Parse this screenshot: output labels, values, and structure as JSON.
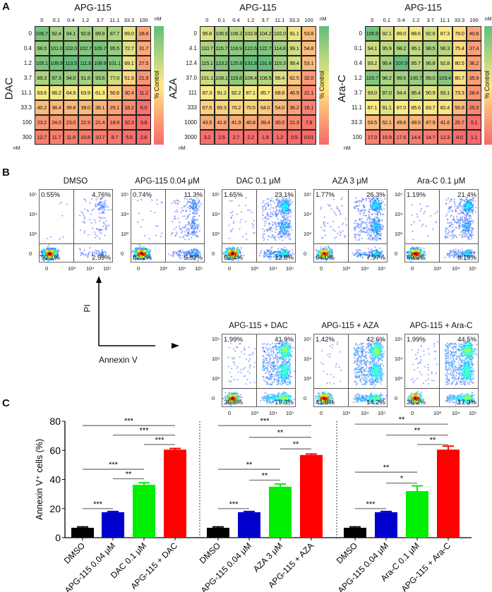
{
  "panel_labels": {
    "a": "A",
    "b": "B",
    "c": "C"
  },
  "chart_data": [
    {
      "type": "heatmap",
      "title": "APG-115",
      "column_unit": "nM",
      "row_drug": "DAC",
      "row_unit": "nM",
      "colorbar_label": "% Control",
      "columns": [
        "0",
        "0.1",
        "0.4",
        "1.2",
        "3.7",
        "11.1",
        "33.3",
        "100"
      ],
      "rows": [
        "0",
        "0.4",
        "1.2",
        "3.7",
        "11.1",
        "33.3",
        "100",
        "300"
      ],
      "values": [
        [
          106.7,
          92.4,
          94.1,
          92.8,
          89.9,
          87.7,
          69.0,
          28.8
        ],
        [
          96.5,
          101.0,
          102.0,
          102.7,
          105.7,
          95.5,
          72.7,
          31.7
        ],
        [
          105.1,
          108.9,
          113.5,
          111.6,
          108.9,
          101.1,
          69.1,
          27.5
        ],
        [
          89.3,
          97.3,
          94.0,
          91.6,
          93.6,
          77.0,
          51.9,
          21.9
        ],
        [
          63.6,
          66.2,
          64.9,
          63.9,
          61.3,
          50.6,
          30.4,
          11.2
        ],
        [
          40.2,
          38.4,
          39.8,
          39.0,
          36.1,
          29.1,
          18.2,
          6.0
        ],
        [
          23.2,
          24.0,
          23.0,
          22.9,
          21.4,
          18.9,
          10.3,
          3.8
        ],
        [
          12.7,
          11.7,
          11.8,
          10.8,
          10.7,
          8.7,
          5.5,
          2.6
        ]
      ]
    },
    {
      "type": "heatmap",
      "title": "APG-115",
      "column_unit": "nM",
      "row_drug": "AZA",
      "row_unit": "nM",
      "colorbar_label": "% Control",
      "columns": [
        "0",
        "0.1",
        "0.4",
        "1.2",
        "3.7",
        "11.1",
        "33.3",
        "100"
      ],
      "rows": [
        "0",
        "4.1",
        "12.4",
        "37.0",
        "111",
        "333",
        "1000",
        "3000"
      ],
      "values": [
        [
          95.8,
          106.6,
          106.2,
          102.8,
          104.2,
          102.0,
          91.1,
          53.8
        ],
        [
          110.7,
          115.7,
          118.9,
          122.6,
          122.7,
          114.8,
          99.1,
          54.8
        ],
        [
          115.1,
          123.2,
          125.8,
          131.8,
          131.6,
          115.3,
          99.4,
          53.1
        ],
        [
          101.1,
          108.1,
          119.8,
          108.4,
          108.5,
          96.4,
          62.5,
          32.0
        ],
        [
          87.3,
          91.2,
          92.2,
          87.1,
          85.7,
          68.8,
          46.9,
          21.1
        ],
        [
          67.5,
          69.3,
          70.2,
          70.5,
          64.0,
          54.0,
          36.2,
          16.1
        ],
        [
          43.5,
          41.8,
          41.9,
          40.8,
          39.4,
          30.0,
          21.3,
          7.8
        ],
        [
          3.2,
          2.5,
          2.7,
          2.2,
          1.9,
          1.2,
          0.5,
          0.01
        ]
      ]
    },
    {
      "type": "heatmap",
      "title": "APG-115",
      "column_unit": "nM",
      "row_drug": "Ara-C",
      "row_unit": "nM",
      "colorbar_label": "% Control",
      "columns": [
        "0",
        "0.1",
        "0.4",
        "1.2",
        "3.7",
        "11.1",
        "33.3",
        "100"
      ],
      "rows": [
        "0",
        "0.1",
        "0.4",
        "1.2",
        "3.7",
        "11.1",
        "33.3",
        "100"
      ],
      "values": [
        [
          105.9,
          92.1,
          89.0,
          88.6,
          92.6,
          87.3,
          79.0,
          40.8
        ],
        [
          94.1,
          95.9,
          98.2,
          95.1,
          98.5,
          96.3,
          75.4,
          37.4
        ],
        [
          93.2,
          99.4,
          107.9,
          95.7,
          96.8,
          92.8,
          80.5,
          36.2
        ],
        [
          103.7,
          98.2,
          99.6,
          100.7,
          99.0,
          103.4,
          80.7,
          35.9
        ],
        [
          93.0,
          97.0,
          94.4,
          95.4,
          90.9,
          93.1,
          73.3,
          28.4
        ],
        [
          87.1,
          91.1,
          87.0,
          85.6,
          83.7,
          82.4,
          56.8,
          20.3
        ],
        [
          53.5,
          52.1,
          49.6,
          49.5,
          47.9,
          41.6,
          25.7,
          5.1
        ],
        [
          17.0,
          15.9,
          17.6,
          14.4,
          14.7,
          12.3,
          4.0,
          1.1
        ]
      ]
    },
    {
      "type": "scatter",
      "description_axes": {
        "x": "Annexin V",
        "y": "PI"
      },
      "y_ticks": [
        "10⁵",
        "10⁴",
        "10³",
        "0"
      ],
      "x_ticks": [
        "0",
        "10³",
        "10⁴",
        "10⁵"
      ],
      "plots": [
        {
          "title": "DMSO",
          "UL": "0.55%",
          "UR": "4.76%",
          "LL": "92.1%",
          "LR": "2.59%"
        },
        {
          "title": "APG-115 0.04 μM",
          "UL": "0.74%",
          "UR": "11.3%",
          "LL": "82.2%",
          "LR": "5.82%"
        },
        {
          "title": "DAC 0.1 μM",
          "UL": "1.65%",
          "UR": "23.1%",
          "LL": "62.4%",
          "LR": "12.8%"
        },
        {
          "title": "AZA 3 μM",
          "UL": "1.77%",
          "UR": "26.3%",
          "LL": "64.0%",
          "LR": "7.97%"
        },
        {
          "title": "Ara-C 0.1 μM",
          "UL": "1.19%",
          "UR": "21.4%",
          "LL": "69.3%",
          "LR": "8.19%"
        },
        {
          "title": "APG-115 + DAC",
          "UL": "1.99%",
          "UR": "41.9%",
          "LL": "36.8%",
          "LR": "19.3%"
        },
        {
          "title": "APG-115 + AZA",
          "UL": "1.42%",
          "UR": "42.6%",
          "LL": "41.8%",
          "LR": "14.2%"
        },
        {
          "title": "APG-115 + Ara-C",
          "UL": "1.99%",
          "UR": "44.5%",
          "LL": "36.2%",
          "LR": "17.3%"
        }
      ]
    },
    {
      "type": "bar",
      "ylabel": "Annexin V⁺ cells (%)",
      "ylim": [
        0,
        80
      ],
      "yticks": [
        0,
        20,
        40,
        60,
        80
      ],
      "groups": [
        {
          "categories": [
            "DMSO",
            "APG-115 0.04 μM",
            "DAC 0.1 μM",
            "APG-115 + DAC"
          ],
          "values": [
            6.8,
            17.5,
            36.3,
            60.5
          ],
          "errors": [
            0.6,
            0.5,
            1.4,
            0.8
          ],
          "significance": [
            {
              "from": 0,
              "to": 1,
              "y": 20,
              "label": "***"
            },
            {
              "from": 1,
              "to": 2,
              "y": 40.5,
              "label": "**"
            },
            {
              "from": 0,
              "to": 2,
              "y": 47,
              "label": "***"
            },
            {
              "from": 2,
              "to": 3,
              "y": 64,
              "label": "***"
            },
            {
              "from": 1,
              "to": 3,
              "y": 70.5,
              "label": "***"
            },
            {
              "from": 0,
              "to": 3,
              "y": 77,
              "label": "***"
            }
          ]
        },
        {
          "categories": [
            "DMSO",
            "APG-115 0.04 μM",
            "AZA 3 μM",
            "APG-115 + AZA"
          ],
          "values": [
            6.8,
            17.5,
            35.0,
            56.8
          ],
          "errors": [
            0.6,
            0.5,
            1.9,
            0.7
          ],
          "significance": [
            {
              "from": 0,
              "to": 1,
              "y": 20,
              "label": "***"
            },
            {
              "from": 1,
              "to": 2,
              "y": 39.5,
              "label": "**"
            },
            {
              "from": 0,
              "to": 2,
              "y": 47,
              "label": "**"
            },
            {
              "from": 2,
              "to": 3,
              "y": 61,
              "label": "**"
            },
            {
              "from": 1,
              "to": 3,
              "y": 69,
              "label": "**"
            },
            {
              "from": 0,
              "to": 3,
              "y": 77,
              "label": "***"
            }
          ]
        },
        {
          "categories": [
            "DMSO",
            "APG-115 0.04 μM",
            "Ara-C 0.1 μM",
            "APG-115 + Ara-C"
          ],
          "values": [
            6.8,
            17.5,
            32.0,
            60.5
          ],
          "errors": [
            0.6,
            0.5,
            3.6,
            2.4
          ],
          "significance": [
            {
              "from": 0,
              "to": 1,
              "y": 20,
              "label": "***"
            },
            {
              "from": 1,
              "to": 2,
              "y": 37.5,
              "label": "*"
            },
            {
              "from": 0,
              "to": 2,
              "y": 45,
              "label": "**"
            },
            {
              "from": 2,
              "to": 3,
              "y": 64,
              "label": "**"
            },
            {
              "from": 1,
              "to": 3,
              "y": 70.5,
              "label": "**"
            },
            {
              "from": 0,
              "to": 3,
              "y": 78,
              "label": "**"
            }
          ]
        }
      ],
      "colors": [
        "#000000",
        "#0000cc",
        "#00ee00",
        "#ff0000"
      ]
    }
  ]
}
